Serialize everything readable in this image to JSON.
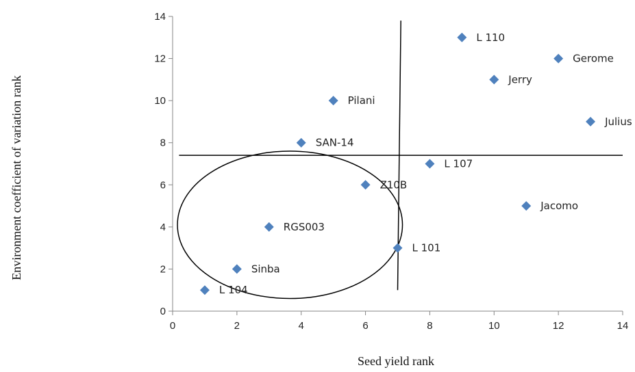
{
  "chart_data": {
    "type": "scatter",
    "title": "",
    "xlabel": "Seed yield rank",
    "ylabel": "Environment coefficient of variation rank",
    "xlim": [
      0,
      14
    ],
    "ylim": [
      0,
      14
    ],
    "xticks": [
      0,
      2,
      4,
      6,
      8,
      10,
      12,
      14
    ],
    "yticks": [
      0,
      2,
      4,
      6,
      8,
      10,
      12,
      14
    ],
    "grid": false,
    "legend": "none",
    "marker": "diamond",
    "marker_color": "#4f81bd",
    "points": [
      {
        "label": "L 104",
        "x": 1,
        "y": 1
      },
      {
        "label": "Sinba",
        "x": 2,
        "y": 2
      },
      {
        "label": "RGS003",
        "x": 3,
        "y": 4
      },
      {
        "label": "SAN-14",
        "x": 4,
        "y": 8
      },
      {
        "label": "Pilani",
        "x": 5,
        "y": 10
      },
      {
        "label": "Z10B",
        "x": 6,
        "y": 6
      },
      {
        "label": "L 101",
        "x": 7,
        "y": 3
      },
      {
        "label": "L 107",
        "x": 8,
        "y": 7
      },
      {
        "label": "L 110",
        "x": 9,
        "y": 13
      },
      {
        "label": "Jerry",
        "x": 10,
        "y": 11
      },
      {
        "label": "Jacomo",
        "x": 11,
        "y": 5
      },
      {
        "label": "Gerome",
        "x": 12,
        "y": 12
      },
      {
        "label": "Julius",
        "x": 13,
        "y": 9
      }
    ],
    "reference_lines": [
      {
        "orientation": "horizontal",
        "y": 7.4,
        "x_from": 0.2,
        "x_to": 14
      },
      {
        "orientation": "vertical-slightly-tilted",
        "x_top": 7.1,
        "y_top": 13.8,
        "x_bottom": 7.0,
        "y_bottom": 1.0
      }
    ],
    "annotation_ellipse": {
      "center_x": 3.65,
      "center_y": 4.1,
      "radius_x": 3.5,
      "radius_y": 3.5
    }
  }
}
